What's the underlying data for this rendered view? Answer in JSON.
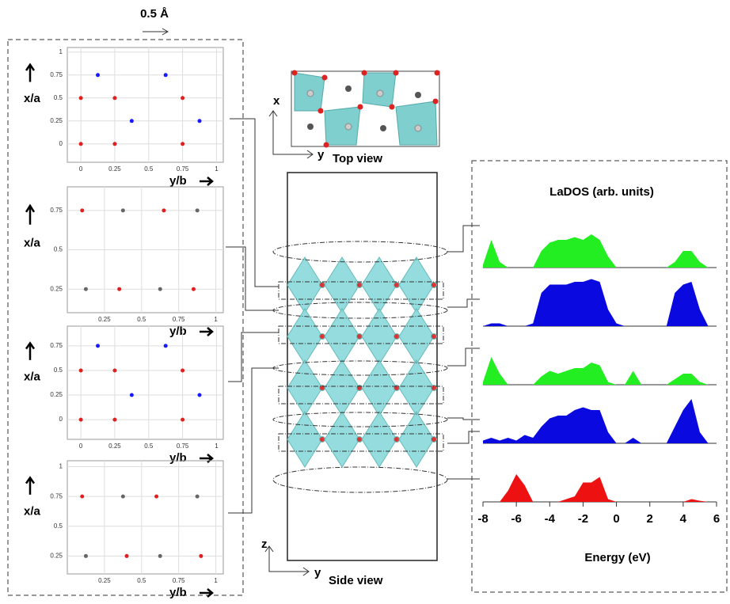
{
  "scale_label": "0.5 Å",
  "top_view": {
    "title": "Top view",
    "axis_x": "x",
    "axis_y": "y"
  },
  "side_view": {
    "title": "Side view",
    "axis_z": "z",
    "axis_y": "y"
  },
  "chart_data": [
    {
      "type": "scatter",
      "xlabel": "y/b",
      "ylabel": "x/a",
      "xlim": [
        -0.1,
        1.05
      ],
      "ylim": [
        -0.2,
        1.05
      ],
      "xticks": [
        0,
        0.25,
        0.5,
        0.75,
        1
      ],
      "yticks": [
        0,
        0.25,
        0.5,
        0.75,
        1
      ],
      "grid": true,
      "series": [
        {
          "color": "#e02020",
          "x": [
            0,
            0.25,
            0.75,
            0,
            0.25,
            0.75
          ],
          "values": [
            0.5,
            0.5,
            0.5,
            0,
            0,
            0
          ]
        },
        {
          "color": "#1a1aff",
          "x": [
            0.125,
            0.625,
            0.375,
            0.875
          ],
          "values": [
            0.75,
            0.75,
            0.25,
            0.25
          ]
        }
      ]
    },
    {
      "type": "scatter",
      "xlabel": "y/b",
      "ylabel": "x/a",
      "xlim": [
        0,
        1.05
      ],
      "ylim": [
        0.1,
        0.9
      ],
      "xticks": [
        0.25,
        0.5,
        0.75,
        1
      ],
      "yticks": [
        0.25,
        0.5,
        0.75
      ],
      "grid": true,
      "series": [
        {
          "color": "#e02020",
          "x": [
            0.1,
            0.65,
            0.35,
            0.85
          ],
          "values": [
            0.75,
            0.75,
            0.25,
            0.25
          ]
        },
        {
          "color": "#666666",
          "x": [
            0.375,
            0.875,
            0.125,
            0.625
          ],
          "values": [
            0.75,
            0.75,
            0.25,
            0.25
          ]
        }
      ]
    },
    {
      "type": "scatter",
      "xlabel": "y/b",
      "ylabel": "x/a",
      "xlim": [
        -0.1,
        1.05
      ],
      "ylim": [
        -0.2,
        0.95
      ],
      "xticks": [
        0,
        0.25,
        0.5,
        0.75,
        1
      ],
      "yticks": [
        0,
        0.25,
        0.5,
        0.75
      ],
      "grid": true,
      "series": [
        {
          "color": "#e02020",
          "x": [
            0,
            0.25,
            0.75,
            0,
            0.25,
            0.75
          ],
          "values": [
            0.5,
            0.5,
            0.5,
            0,
            0,
            0
          ]
        },
        {
          "color": "#1a1aff",
          "x": [
            0.125,
            0.625,
            0.375,
            0.875
          ],
          "values": [
            0.75,
            0.75,
            0.25,
            0.25
          ]
        }
      ]
    },
    {
      "type": "scatter",
      "xlabel": "y/b",
      "ylabel": "x/a",
      "xlim": [
        0,
        1.05
      ],
      "ylim": [
        0.1,
        1.05
      ],
      "xticks": [
        0.25,
        0.5,
        0.75,
        1
      ],
      "yticks": [
        0.25,
        0.5,
        0.75,
        1
      ],
      "grid": true,
      "series": [
        {
          "color": "#e02020",
          "x": [
            0.1,
            0.6,
            0.4,
            0.9
          ],
          "values": [
            0.75,
            0.75,
            0.25,
            0.25
          ]
        },
        {
          "color": "#666666",
          "x": [
            0.375,
            0.875,
            0.125,
            0.625
          ],
          "values": [
            0.75,
            0.75,
            0.25,
            0.25
          ]
        }
      ]
    },
    {
      "type": "area",
      "title": "LaDOS (arb. units)",
      "xlabel": "Energy (eV)",
      "xlim": [
        -8,
        6
      ],
      "ylim": [
        0,
        1
      ],
      "xticks": [
        -8,
        -6,
        -4,
        -2,
        0,
        2,
        4,
        6
      ],
      "x": [
        -8,
        -7.5,
        -7,
        -6.5,
        -6,
        -5.5,
        -5,
        -4.5,
        -4,
        -3.5,
        -3,
        -2.5,
        -2,
        -1.5,
        -1,
        -0.5,
        0,
        0.5,
        1,
        1.5,
        2,
        2.5,
        3,
        3.5,
        4,
        4.5,
        5,
        5.5,
        6
      ],
      "series": [
        {
          "color": "#22ee22",
          "values": [
            0.05,
            0.5,
            0.1,
            0,
            0,
            0,
            0,
            0.3,
            0.45,
            0.5,
            0.5,
            0.55,
            0.5,
            0.6,
            0.5,
            0.2,
            0,
            0,
            0,
            0,
            0,
            0,
            0,
            0.1,
            0.3,
            0.3,
            0.1,
            0,
            0
          ]
        },
        {
          "color": "#0a0ae0",
          "values": [
            0,
            0.05,
            0.05,
            0,
            0,
            0,
            0.05,
            0.6,
            0.75,
            0.75,
            0.75,
            0.8,
            0.8,
            0.85,
            0.8,
            0.3,
            0.05,
            0,
            0,
            0,
            0,
            0,
            0,
            0.6,
            0.75,
            0.8,
            0.3,
            0,
            0
          ]
        },
        {
          "color": "#22ee22",
          "values": [
            0.05,
            0.5,
            0.2,
            0,
            0,
            0,
            0,
            0.15,
            0.25,
            0.2,
            0.25,
            0.3,
            0.3,
            0.4,
            0.35,
            0.05,
            0,
            0,
            0.25,
            0,
            0,
            0,
            0,
            0.1,
            0.2,
            0.2,
            0.05,
            0,
            0
          ]
        },
        {
          "color": "#0a0ae0",
          "values": [
            0.05,
            0.1,
            0.05,
            0.1,
            0.05,
            0.15,
            0.1,
            0.3,
            0.45,
            0.5,
            0.5,
            0.6,
            0.65,
            0.6,
            0.6,
            0.2,
            0,
            0,
            0.1,
            0,
            0,
            0,
            0,
            0.3,
            0.6,
            0.8,
            0.2,
            0,
            0
          ]
        },
        {
          "color": "#ee1111",
          "values": [
            0,
            0,
            0,
            0.2,
            0.5,
            0.3,
            0,
            0,
            0,
            0,
            0.05,
            0.1,
            0.35,
            0.35,
            0.45,
            0.05,
            0,
            0,
            0,
            0,
            0,
            0,
            0,
            0,
            0,
            0.05,
            0.02,
            0,
            0
          ]
        }
      ]
    }
  ]
}
